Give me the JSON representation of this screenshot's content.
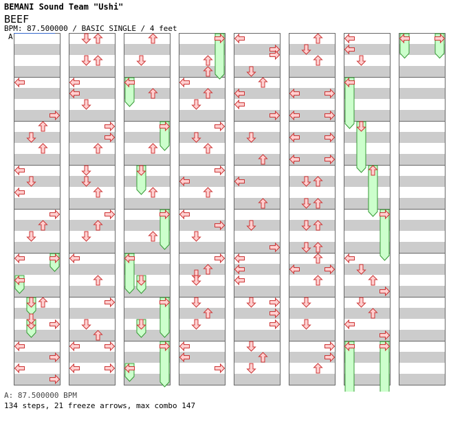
{
  "header": {
    "artist_title": "BEMANI Sound Team \"Ushi\"",
    "song_title": "BEEF",
    "bpm_line": "BPM: 87.500000 / BASIC SINGLE / 4 feet",
    "marker_label": "A"
  },
  "footer": {
    "bpm_text": "A: 87.500000 BPM",
    "stats_text": "134 steps, 21 freeze arrows, max combo 147"
  },
  "colors": {
    "arrow_fill": "#ffd0d0",
    "arrow_stroke": "#cc3333",
    "freeze_fill": "#ccffcc",
    "freeze_stroke": "#339933",
    "stripe_gray": "#cccccc",
    "marker_line": "#3366cc"
  },
  "lanes": [
    "left",
    "down",
    "up",
    "right"
  ],
  "measures_per_column": 8,
  "columns": [
    {
      "arrows": [
        {
          "m": 1,
          "pos": 0,
          "lane": "left"
        },
        {
          "m": 1,
          "pos": 0.75,
          "lane": "right"
        },
        {
          "m": 2,
          "pos": 0,
          "lane": "up"
        },
        {
          "m": 2,
          "pos": 0.25,
          "lane": "down"
        },
        {
          "m": 2,
          "pos": 0.5,
          "lane": "up"
        },
        {
          "m": 3,
          "pos": 0,
          "lane": "left"
        },
        {
          "m": 3,
          "pos": 0.25,
          "lane": "down"
        },
        {
          "m": 3,
          "pos": 0.5,
          "lane": "left"
        },
        {
          "m": 4,
          "pos": 0,
          "lane": "right"
        },
        {
          "m": 4,
          "pos": 0.25,
          "lane": "up"
        },
        {
          "m": 4,
          "pos": 0.5,
          "lane": "down"
        },
        {
          "m": 5,
          "pos": 0,
          "lane": "left"
        },
        {
          "m": 6,
          "pos": 0,
          "lane": "up"
        },
        {
          "m": 6,
          "pos": 0.375,
          "lane": "down"
        },
        {
          "m": 6,
          "pos": 0.5,
          "lane": "right"
        },
        {
          "m": 7,
          "pos": 0,
          "lane": "left"
        },
        {
          "m": 7,
          "pos": 0.25,
          "lane": "right"
        },
        {
          "m": 7,
          "pos": 0.5,
          "lane": "left"
        },
        {
          "m": 7,
          "pos": 0.75,
          "lane": "right"
        }
      ],
      "freezes": [
        {
          "m": 5,
          "pos": 0,
          "lane": "right",
          "len": 0.25
        },
        {
          "m": 5,
          "pos": 0.5,
          "lane": "left",
          "len": 0.25
        },
        {
          "m": 6,
          "pos": 0,
          "lane": "down",
          "len": 0.25
        },
        {
          "m": 6,
          "pos": 0.5,
          "lane": "down",
          "len": 0.25
        }
      ]
    },
    {
      "arrows": [
        {
          "m": 0,
          "pos": 0,
          "lane": "down"
        },
        {
          "m": 0,
          "pos": 0,
          "lane": "up"
        },
        {
          "m": 0,
          "pos": 0.5,
          "lane": "down"
        },
        {
          "m": 0,
          "pos": 0.5,
          "lane": "up"
        },
        {
          "m": 1,
          "pos": 0,
          "lane": "left"
        },
        {
          "m": 1,
          "pos": 0.25,
          "lane": "left"
        },
        {
          "m": 1,
          "pos": 0.5,
          "lane": "down"
        },
        {
          "m": 2,
          "pos": 0,
          "lane": "right"
        },
        {
          "m": 2,
          "pos": 0.25,
          "lane": "right"
        },
        {
          "m": 2,
          "pos": 0.5,
          "lane": "up"
        },
        {
          "m": 3,
          "pos": 0,
          "lane": "down"
        },
        {
          "m": 3,
          "pos": 0.25,
          "lane": "down"
        },
        {
          "m": 3,
          "pos": 0.5,
          "lane": "up"
        },
        {
          "m": 4,
          "pos": 0,
          "lane": "right"
        },
        {
          "m": 4,
          "pos": 0.25,
          "lane": "up"
        },
        {
          "m": 4,
          "pos": 0.5,
          "lane": "down"
        },
        {
          "m": 5,
          "pos": 0,
          "lane": "left"
        },
        {
          "m": 5,
          "pos": 0.5,
          "lane": "up"
        },
        {
          "m": 6,
          "pos": 0,
          "lane": "right"
        },
        {
          "m": 6,
          "pos": 0.5,
          "lane": "down"
        },
        {
          "m": 6,
          "pos": 0.75,
          "lane": "up"
        },
        {
          "m": 7,
          "pos": 0,
          "lane": "left"
        },
        {
          "m": 7,
          "pos": 0,
          "lane": "right"
        },
        {
          "m": 7,
          "pos": 0.5,
          "lane": "left"
        },
        {
          "m": 7,
          "pos": 0.5,
          "lane": "right"
        }
      ],
      "freezes": []
    },
    {
      "arrows": [
        {
          "m": 0,
          "pos": 0,
          "lane": "up"
        },
        {
          "m": 0,
          "pos": 0.5,
          "lane": "down"
        },
        {
          "m": 1,
          "pos": 0.25,
          "lane": "up"
        },
        {
          "m": 2,
          "pos": 0.5,
          "lane": "up"
        },
        {
          "m": 3,
          "pos": 0.5,
          "lane": "up"
        },
        {
          "m": 4,
          "pos": 0.5,
          "lane": "up"
        }
      ],
      "freezes": [
        {
          "m": 1,
          "pos": 0,
          "lane": "left",
          "len": 0.5
        },
        {
          "m": 2,
          "pos": 0,
          "lane": "right",
          "len": 0.5
        },
        {
          "m": 3,
          "pos": 0,
          "lane": "down",
          "len": 0.5
        },
        {
          "m": 4,
          "pos": 0,
          "lane": "right",
          "len": 0.75
        },
        {
          "m": 5,
          "pos": 0,
          "lane": "left",
          "len": 0.75
        },
        {
          "m": 5,
          "pos": 0.5,
          "lane": "down",
          "len": 0.25
        },
        {
          "m": 6,
          "pos": 0,
          "lane": "right",
          "len": 0.75
        },
        {
          "m": 6,
          "pos": 0.5,
          "lane": "down",
          "len": 0.25
        },
        {
          "m": 7,
          "pos": 0,
          "lane": "right",
          "len": 0.875
        },
        {
          "m": 7,
          "pos": 0.5,
          "lane": "left",
          "len": 0.25
        }
      ]
    },
    {
      "arrows": [
        {
          "m": 0,
          "pos": 0.5,
          "lane": "up"
        },
        {
          "m": 0,
          "pos": 0.75,
          "lane": "up"
        },
        {
          "m": 1,
          "pos": 0,
          "lane": "left"
        },
        {
          "m": 1,
          "pos": 0.25,
          "lane": "up"
        },
        {
          "m": 1,
          "pos": 0.5,
          "lane": "down"
        },
        {
          "m": 2,
          "pos": 0,
          "lane": "right"
        },
        {
          "m": 2,
          "pos": 0.25,
          "lane": "down"
        },
        {
          "m": 2,
          "pos": 0.5,
          "lane": "up"
        },
        {
          "m": 3,
          "pos": 0,
          "lane": "right"
        },
        {
          "m": 3,
          "pos": 0.25,
          "lane": "left"
        },
        {
          "m": 3,
          "pos": 0.5,
          "lane": "up"
        },
        {
          "m": 4,
          "pos": 0,
          "lane": "left"
        },
        {
          "m": 4,
          "pos": 0.25,
          "lane": "right"
        },
        {
          "m": 4,
          "pos": 0.5,
          "lane": "down"
        },
        {
          "m": 5,
          "pos": 0,
          "lane": "right"
        },
        {
          "m": 5,
          "pos": 0.25,
          "lane": "up"
        },
        {
          "m": 5,
          "pos": 0.375,
          "lane": "down"
        },
        {
          "m": 5,
          "pos": 0.5,
          "lane": "down"
        },
        {
          "m": 6,
          "pos": 0,
          "lane": "down"
        },
        {
          "m": 6,
          "pos": 0.25,
          "lane": "up"
        },
        {
          "m": 6,
          "pos": 0.5,
          "lane": "down"
        },
        {
          "m": 7,
          "pos": 0,
          "lane": "left"
        },
        {
          "m": 7,
          "pos": 0.25,
          "lane": "left"
        },
        {
          "m": 7,
          "pos": 0.5,
          "lane": "right"
        }
      ],
      "freezes": [
        {
          "m": 0,
          "pos": 0,
          "lane": "right",
          "len": 0.875
        }
      ]
    },
    {
      "arrows": [
        {
          "m": 0,
          "pos": 0,
          "lane": "left"
        },
        {
          "m": 0,
          "pos": 0.25,
          "lane": "right"
        },
        {
          "m": 0,
          "pos": 0.375,
          "lane": "right"
        },
        {
          "m": 0,
          "pos": 0.75,
          "lane": "down"
        },
        {
          "m": 1,
          "pos": 0,
          "lane": "up"
        },
        {
          "m": 1,
          "pos": 0.25,
          "lane": "left"
        },
        {
          "m": 1,
          "pos": 0.5,
          "lane": "left"
        },
        {
          "m": 1,
          "pos": 0.75,
          "lane": "right"
        },
        {
          "m": 2,
          "pos": 0.25,
          "lane": "down"
        },
        {
          "m": 2,
          "pos": 0.75,
          "lane": "up"
        },
        {
          "m": 3,
          "pos": 0.25,
          "lane": "left"
        },
        {
          "m": 3,
          "pos": 0.75,
          "lane": "up"
        },
        {
          "m": 4,
          "pos": 0.25,
          "lane": "down"
        },
        {
          "m": 4,
          "pos": 0.75,
          "lane": "right"
        },
        {
          "m": 5,
          "pos": 0,
          "lane": "left"
        },
        {
          "m": 5,
          "pos": 0.25,
          "lane": "left"
        },
        {
          "m": 5,
          "pos": 0.5,
          "lane": "left"
        },
        {
          "m": 6,
          "pos": 0,
          "lane": "down"
        },
        {
          "m": 6,
          "pos": 0,
          "lane": "right"
        },
        {
          "m": 6,
          "pos": 0.25,
          "lane": "right"
        },
        {
          "m": 6,
          "pos": 0.5,
          "lane": "right"
        },
        {
          "m": 7,
          "pos": 0,
          "lane": "down"
        },
        {
          "m": 7,
          "pos": 0.25,
          "lane": "up"
        },
        {
          "m": 7,
          "pos": 0.5,
          "lane": "down"
        }
      ],
      "freezes": []
    },
    {
      "arrows": [
        {
          "m": 0,
          "pos": 0,
          "lane": "up"
        },
        {
          "m": 0,
          "pos": 0.25,
          "lane": "down"
        },
        {
          "m": 0,
          "pos": 0.5,
          "lane": "up"
        },
        {
          "m": 1,
          "pos": 0.25,
          "lane": "left"
        },
        {
          "m": 1,
          "pos": 0.25,
          "lane": "right"
        },
        {
          "m": 1,
          "pos": 0.75,
          "lane": "left"
        },
        {
          "m": 1,
          "pos": 0.75,
          "lane": "right"
        },
        {
          "m": 2,
          "pos": 0.25,
          "lane": "left"
        },
        {
          "m": 2,
          "pos": 0.25,
          "lane": "right"
        },
        {
          "m": 2,
          "pos": 0.75,
          "lane": "left"
        },
        {
          "m": 2,
          "pos": 0.75,
          "lane": "right"
        },
        {
          "m": 3,
          "pos": 0.25,
          "lane": "down"
        },
        {
          "m": 3,
          "pos": 0.25,
          "lane": "up"
        },
        {
          "m": 3,
          "pos": 0.75,
          "lane": "down"
        },
        {
          "m": 3,
          "pos": 0.75,
          "lane": "up"
        },
        {
          "m": 4,
          "pos": 0.25,
          "lane": "down"
        },
        {
          "m": 4,
          "pos": 0.25,
          "lane": "up"
        },
        {
          "m": 4,
          "pos": 0.75,
          "lane": "down"
        },
        {
          "m": 4,
          "pos": 0.75,
          "lane": "up"
        },
        {
          "m": 5,
          "pos": 0,
          "lane": "up"
        },
        {
          "m": 5,
          "pos": 0.25,
          "lane": "left"
        },
        {
          "m": 5,
          "pos": 0.25,
          "lane": "right"
        },
        {
          "m": 5,
          "pos": 0.5,
          "lane": "up"
        },
        {
          "m": 6,
          "pos": 0,
          "lane": "down"
        },
        {
          "m": 6,
          "pos": 0.5,
          "lane": "down"
        },
        {
          "m": 7,
          "pos": 0,
          "lane": "right"
        },
        {
          "m": 7,
          "pos": 0.25,
          "lane": "right"
        },
        {
          "m": 7,
          "pos": 0.5,
          "lane": "up"
        }
      ],
      "freezes": []
    },
    {
      "arrows": [
        {
          "m": 0,
          "pos": 0,
          "lane": "left"
        },
        {
          "m": 0,
          "pos": 0.25,
          "lane": "left"
        },
        {
          "m": 0,
          "pos": 0.5,
          "lane": "down"
        },
        {
          "m": 5,
          "pos": 0,
          "lane": "left"
        },
        {
          "m": 5,
          "pos": 0.25,
          "lane": "down"
        },
        {
          "m": 5,
          "pos": 0.5,
          "lane": "up"
        },
        {
          "m": 5,
          "pos": 0.75,
          "lane": "right"
        },
        {
          "m": 6,
          "pos": 0,
          "lane": "down"
        },
        {
          "m": 6,
          "pos": 0.25,
          "lane": "up"
        },
        {
          "m": 6,
          "pos": 0.5,
          "lane": "left"
        },
        {
          "m": 6,
          "pos": 0.75,
          "lane": "right"
        }
      ],
      "freezes": [
        {
          "m": 1,
          "pos": 0,
          "lane": "left",
          "len": 1
        },
        {
          "m": 2,
          "pos": 0,
          "lane": "down",
          "len": 1
        },
        {
          "m": 3,
          "pos": 0,
          "lane": "up",
          "len": 1
        },
        {
          "m": 4,
          "pos": 0,
          "lane": "right",
          "len": 1
        },
        {
          "m": 7,
          "pos": 0,
          "lane": "left",
          "len": 1.1
        },
        {
          "m": 7,
          "pos": 0,
          "lane": "right",
          "len": 1.1
        }
      ]
    },
    {
      "arrows": [],
      "freezes": [
        {
          "m": 0,
          "pos": 0,
          "lane": "left",
          "len": 0.4
        },
        {
          "m": 0,
          "pos": 0,
          "lane": "right",
          "len": 0.4
        }
      ]
    }
  ]
}
